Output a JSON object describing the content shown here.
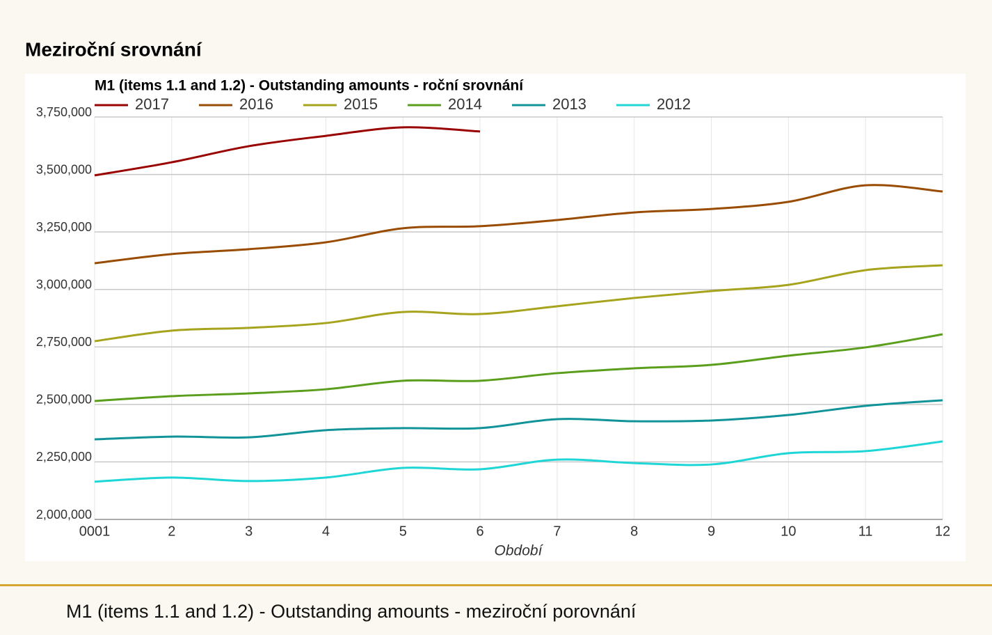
{
  "heading": "Meziroční srovnání",
  "chart_data": {
    "type": "line",
    "title": "M1 (items 1.1 and 1.2) - Outstanding amounts - roční srovnání",
    "x_label": "Období",
    "x": [
      1,
      2,
      3,
      4,
      5,
      6,
      7,
      8,
      9,
      10,
      11,
      12
    ],
    "xlim": [
      1,
      12
    ],
    "xticks": [
      {
        "value": 1,
        "label": "0001"
      },
      2,
      3,
      4,
      5,
      6,
      7,
      8,
      9,
      10,
      11,
      12
    ],
    "ylim": [
      2000000,
      3750000
    ],
    "yticks": [
      {
        "value": 2000000,
        "label": "2,000,000"
      },
      {
        "value": 2250000,
        "label": "2,250,000"
      },
      {
        "value": 2500000,
        "label": "2,500,000"
      },
      {
        "value": 2750000,
        "label": "2,750,000"
      },
      {
        "value": 3000000,
        "label": "3,000,000"
      },
      {
        "value": 3250000,
        "label": "3,250,000"
      },
      {
        "value": 3500000,
        "label": "3,500,000"
      },
      {
        "value": 3750000,
        "label": "3,750,000"
      }
    ],
    "grid": true,
    "legend": "top",
    "series": [
      {
        "name": "2017",
        "color": "#990000",
        "values": [
          3496000,
          3553000,
          3623000,
          3668000,
          3705000,
          3687000,
          null,
          null,
          null,
          null,
          null,
          null
        ]
      },
      {
        "name": "2016",
        "color": "#994c00",
        "values": [
          3114000,
          3154000,
          3175000,
          3205000,
          3266000,
          3275000,
          3302000,
          3335000,
          3350000,
          3381000,
          3453000,
          3426000
        ]
      },
      {
        "name": "2015",
        "color": "#a6a31c",
        "values": [
          2775000,
          2821000,
          2833000,
          2854000,
          2902000,
          2893000,
          2927000,
          2963000,
          2993000,
          3020000,
          3084000,
          3105000
        ]
      },
      {
        "name": "2014",
        "color": "#5a9e1c",
        "values": [
          2515000,
          2536000,
          2548000,
          2566000,
          2603000,
          2603000,
          2636000,
          2657000,
          2672000,
          2712000,
          2748000,
          2805000
        ]
      },
      {
        "name": "2013",
        "color": "#11939a",
        "values": [
          2348000,
          2360000,
          2357000,
          2388000,
          2397000,
          2397000,
          2436000,
          2427000,
          2430000,
          2454000,
          2494000,
          2518000
        ]
      },
      {
        "name": "2012",
        "color": "#1fd6d6",
        "values": [
          2164000,
          2182000,
          2167000,
          2182000,
          2224000,
          2218000,
          2260000,
          2245000,
          2239000,
          2288000,
          2297000,
          2339000
        ]
      }
    ]
  },
  "caption": "M1 (items 1.1 and 1.2) - Outstanding amounts - meziroční porovnání"
}
